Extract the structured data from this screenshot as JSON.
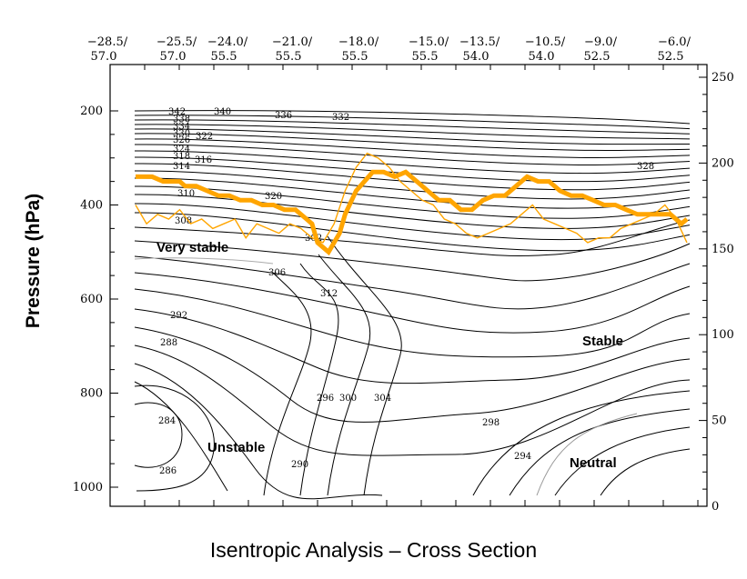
{
  "caption": "Isentropic Analysis – Cross Section",
  "chart_data": {
    "type": "line",
    "title": "",
    "ylabel": "Pressure (hPa)",
    "y_axis": {
      "ticks": [
        200,
        400,
        600,
        800,
        1000
      ],
      "range": [
        1000,
        160
      ],
      "inverted": true
    },
    "right_axis": {
      "ticks": [
        0,
        50,
        100,
        150,
        200,
        250
      ],
      "range": [
        0,
        250
      ]
    },
    "top_axis": {
      "labels": [
        [
          "−28.5/",
          "57.0"
        ],
        [
          "−25.5/",
          "57.0"
        ],
        [
          "−24.0/",
          "55.5"
        ],
        [
          "−21.0/",
          "55.5"
        ],
        [
          "−18.0/",
          "55.5"
        ],
        [
          "−15.0/",
          "55.5"
        ],
        [
          "−13.5/",
          "54.0"
        ],
        [
          "−10.5/",
          "54.0"
        ],
        [
          "−9.0/",
          "52.5"
        ],
        [
          "−6.0/",
          "52.5"
        ]
      ]
    },
    "annotations": [
      "Very stable",
      "Unstable",
      "Stable",
      "Neutral"
    ],
    "contour_labels": [
      "342",
      "338",
      "334",
      "330",
      "326",
      "322",
      "324",
      "318",
      "316",
      "314",
      "310",
      "308",
      "306",
      "302",
      "298",
      "294",
      "292",
      "288",
      "284",
      "286",
      "290",
      "296",
      "300",
      "304",
      "312",
      "320",
      "328",
      "332",
      "336",
      "340"
    ],
    "series": [
      {
        "color": "#ffa500",
        "style": "thick",
        "x": [
          0,
          3,
          5,
          8,
          9,
          11,
          13,
          15,
          17,
          19,
          21,
          23,
          25,
          27,
          29,
          31,
          32,
          33,
          35,
          37,
          38,
          40,
          43,
          45,
          47,
          49,
          51,
          53,
          55,
          57,
          59,
          61,
          63,
          65,
          67,
          69,
          71,
          73,
          75,
          77,
          79,
          81,
          83,
          85,
          87,
          89,
          91,
          93,
          95,
          97,
          99,
          100
        ],
        "y": [
          340,
          340,
          350,
          350,
          360,
          360,
          370,
          380,
          380,
          390,
          390,
          400,
          400,
          410,
          410,
          430,
          440,
          480,
          500,
          460,
          420,
          370,
          330,
          330,
          340,
          330,
          350,
          370,
          390,
          390,
          410,
          410,
          390,
          380,
          380,
          360,
          340,
          350,
          350,
          370,
          380,
          380,
          390,
          400,
          400,
          410,
          420,
          420,
          420,
          420,
          440,
          430
        ]
      },
      {
        "color": "#ffa500",
        "style": "thin",
        "x": [
          0,
          2,
          4,
          6,
          8,
          10,
          12,
          14,
          16,
          18,
          20,
          22,
          24,
          26,
          28,
          30,
          32,
          34,
          36,
          38,
          40,
          42,
          44,
          46,
          48,
          50,
          52,
          54,
          56,
          58,
          60,
          62,
          64,
          66,
          68,
          70,
          72,
          74,
          76,
          78,
          80,
          82,
          84,
          86,
          88,
          90,
          92,
          94,
          96,
          98,
          100
        ],
        "y": [
          400,
          440,
          420,
          430,
          410,
          440,
          430,
          450,
          440,
          430,
          470,
          440,
          450,
          460,
          440,
          450,
          470,
          480,
          440,
          370,
          320,
          290,
          300,
          320,
          350,
          370,
          390,
          400,
          430,
          440,
          460,
          470,
          460,
          450,
          440,
          420,
          400,
          430,
          440,
          450,
          460,
          480,
          470,
          470,
          450,
          440,
          430,
          420,
          400,
          430,
          480
        ]
      }
    ]
  }
}
